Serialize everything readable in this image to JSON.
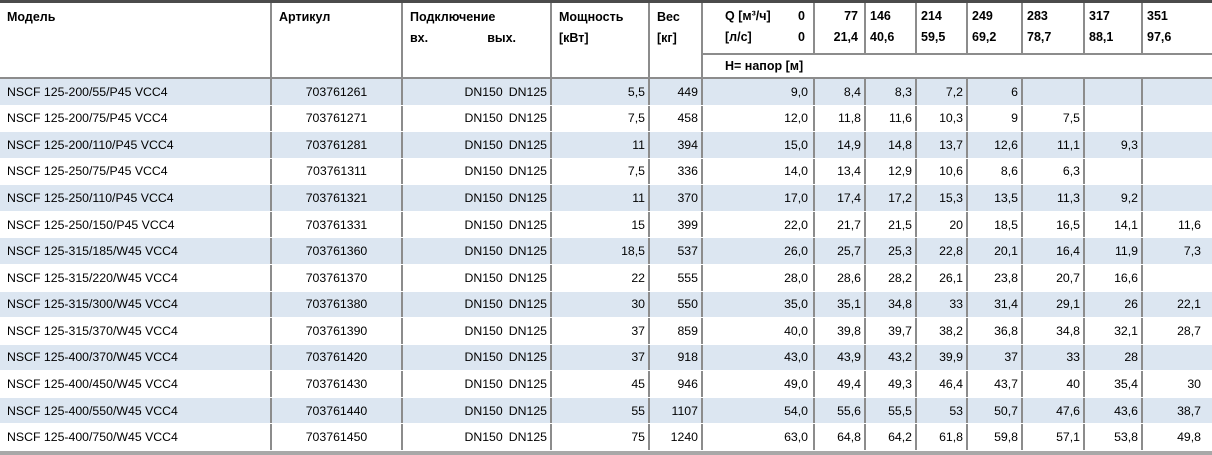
{
  "table": {
    "columns": {
      "model": "Модель",
      "article": "Артикул",
      "connection": "Подключение",
      "inlet": "вх.",
      "outlet": "вых.",
      "power_line1": "Мощность",
      "power_line2": "[кВт]",
      "weight_line1": "Вес",
      "weight_line2": "[кг]",
      "q_label": "Q [м³/ч]",
      "q_zero_m3h": "0",
      "q_unit2": "[л/с]",
      "q_zero_ls": "0",
      "head_label": "Н= напор [м]"
    },
    "q_columns": [
      {
        "m3h": "77",
        "ls": "21,4"
      },
      {
        "m3h": "146",
        "ls": "40,6"
      },
      {
        "m3h": "214",
        "ls": "59,5"
      },
      {
        "m3h": "249",
        "ls": "69,2"
      },
      {
        "m3h": "283",
        "ls": "78,7"
      },
      {
        "m3h": "317",
        "ls": "88,1"
      },
      {
        "m3h": "351",
        "ls": "97,6"
      }
    ],
    "rows": [
      {
        "model": "NSCF 125-200/55/P45 VCC4",
        "article": "703761261",
        "inlet": "DN150",
        "outlet": "DN125",
        "power": "5,5",
        "weight": "449",
        "heads": [
          "9,0",
          "8,4",
          "8,3",
          "7,2",
          "6",
          "",
          "",
          ""
        ]
      },
      {
        "model": "NSCF 125-200/75/P45 VCC4",
        "article": "703761271",
        "inlet": "DN150",
        "outlet": "DN125",
        "power": "7,5",
        "weight": "458",
        "heads": [
          "12,0",
          "11,8",
          "11,6",
          "10,3",
          "9",
          "7,5",
          "",
          ""
        ]
      },
      {
        "model": "NSCF 125-200/110/P45 VCC4",
        "article": "703761281",
        "inlet": "DN150",
        "outlet": "DN125",
        "power": "11",
        "weight": "394",
        "heads": [
          "15,0",
          "14,9",
          "14,8",
          "13,7",
          "12,6",
          "11,1",
          "9,3",
          ""
        ]
      },
      {
        "model": "NSCF 125-250/75/P45 VCC4",
        "article": "703761311",
        "inlet": "DN150",
        "outlet": "DN125",
        "power": "7,5",
        "weight": "336",
        "heads": [
          "14,0",
          "13,4",
          "12,9",
          "10,6",
          "8,6",
          "6,3",
          "",
          ""
        ]
      },
      {
        "model": "NSCF 125-250/110/P45 VCC4",
        "article": "703761321",
        "inlet": "DN150",
        "outlet": "DN125",
        "power": "11",
        "weight": "370",
        "heads": [
          "17,0",
          "17,4",
          "17,2",
          "15,3",
          "13,5",
          "11,3",
          "9,2",
          ""
        ]
      },
      {
        "model": "NSCF 125-250/150/P45 VCC4",
        "article": "703761331",
        "inlet": "DN150",
        "outlet": "DN125",
        "power": "15",
        "weight": "399",
        "heads": [
          "22,0",
          "21,7",
          "21,5",
          "20",
          "18,5",
          "16,5",
          "14,1",
          "11,6"
        ]
      },
      {
        "model": "NSCF 125-315/185/W45 VCC4",
        "article": "703761360",
        "inlet": "DN150",
        "outlet": "DN125",
        "power": "18,5",
        "weight": "537",
        "heads": [
          "26,0",
          "25,7",
          "25,3",
          "22,8",
          "20,1",
          "16,4",
          "11,9",
          "7,3"
        ]
      },
      {
        "model": "NSCF 125-315/220/W45 VCC4",
        "article": "703761370",
        "inlet": "DN150",
        "outlet": "DN125",
        "power": "22",
        "weight": "555",
        "heads": [
          "28,0",
          "28,6",
          "28,2",
          "26,1",
          "23,8",
          "20,7",
          "16,6",
          ""
        ]
      },
      {
        "model": "NSCF 125-315/300/W45 VCC4",
        "article": "703761380",
        "inlet": "DN150",
        "outlet": "DN125",
        "power": "30",
        "weight": "550",
        "heads": [
          "35,0",
          "35,1",
          "34,8",
          "33",
          "31,4",
          "29,1",
          "26",
          "22,1"
        ]
      },
      {
        "model": "NSCF 125-315/370/W45 VCC4",
        "article": "703761390",
        "inlet": "DN150",
        "outlet": "DN125",
        "power": "37",
        "weight": "859",
        "heads": [
          "40,0",
          "39,8",
          "39,7",
          "38,2",
          "36,8",
          "34,8",
          "32,1",
          "28,7"
        ]
      },
      {
        "model": "NSCF 125-400/370/W45 VCC4",
        "article": "703761420",
        "inlet": "DN150",
        "outlet": "DN125",
        "power": "37",
        "weight": "918",
        "heads": [
          "43,0",
          "43,9",
          "43,2",
          "39,9",
          "37",
          "33",
          "28",
          ""
        ]
      },
      {
        "model": "NSCF 125-400/450/W45 VCC4",
        "article": "703761430",
        "inlet": "DN150",
        "outlet": "DN125",
        "power": "45",
        "weight": "946",
        "heads": [
          "49,0",
          "49,4",
          "49,3",
          "46,4",
          "43,7",
          "40",
          "35,4",
          "30"
        ]
      },
      {
        "model": "NSCF 125-400/550/W45 VCC4",
        "article": "703761440",
        "inlet": "DN150",
        "outlet": "DN125",
        "power": "55",
        "weight": "1107",
        "heads": [
          "54,0",
          "55,6",
          "55,5",
          "53",
          "50,7",
          "47,6",
          "43,6",
          "38,7"
        ]
      },
      {
        "model": "NSCF 125-400/750/W45 VCC4",
        "article": "703761450",
        "inlet": "DN150",
        "outlet": "DN125",
        "power": "75",
        "weight": "1240",
        "heads": [
          "63,0",
          "64,8",
          "64,2",
          "61,8",
          "59,8",
          "57,1",
          "53,8",
          "49,8"
        ]
      }
    ]
  },
  "colors": {
    "stripe": "#dce6f1",
    "border_vertical": "#8c8c8c",
    "border_top": "#4b4b4b",
    "border_bottom": "#a8a8a8"
  }
}
